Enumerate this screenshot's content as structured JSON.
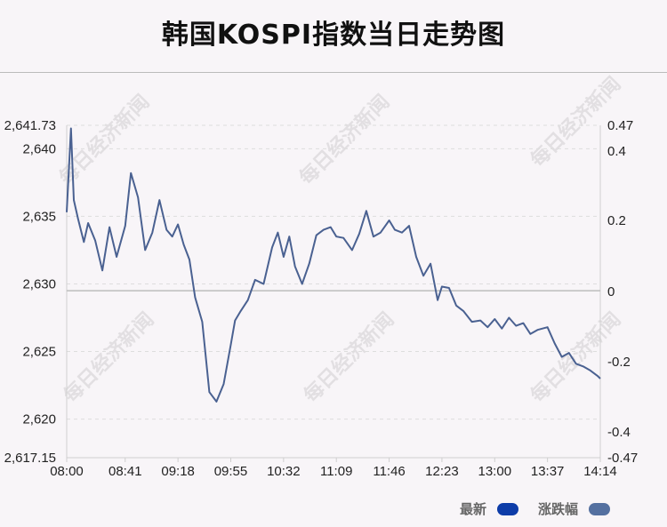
{
  "title": "韩国KOSPI指数当日走势图",
  "watermark": "每日经济新闻",
  "legend": [
    {
      "label": "最新",
      "color": "#0d3ca8"
    },
    {
      "label": "涨跌幅",
      "color": "#5470a0"
    }
  ],
  "chart_data": {
    "type": "line",
    "y_left_ticks": [
      "2,641.73",
      "2,640",
      "2,635",
      "2,630",
      "2,625",
      "2,620",
      "2,617.15"
    ],
    "y_left_range": [
      2617.15,
      2641.73
    ],
    "y_right_ticks": [
      "0.47",
      "0.4",
      "0.2",
      "0",
      "-0.2",
      "-0.4",
      "-0.47"
    ],
    "x_ticks": [
      "08:00",
      "08:41",
      "09:18",
      "09:55",
      "10:32",
      "11:09",
      "11:46",
      "12:23",
      "13:00",
      "13:37",
      "14:14"
    ],
    "baseline": 2629.5,
    "line_color": "#4a6191",
    "series": [
      {
        "name": "最新",
        "x": [
          "08:00",
          "08:03",
          "08:05",
          "08:08",
          "08:12",
          "08:15",
          "08:20",
          "08:25",
          "08:30",
          "08:35",
          "08:41",
          "08:45",
          "08:50",
          "08:55",
          "09:00",
          "09:05",
          "09:10",
          "09:14",
          "09:18",
          "09:22",
          "09:26",
          "09:30",
          "09:35",
          "09:40",
          "09:45",
          "09:50",
          "09:55",
          "09:58",
          "10:02",
          "10:07",
          "10:12",
          "10:18",
          "10:24",
          "10:28",
          "10:32",
          "10:36",
          "10:40",
          "10:45",
          "10:50",
          "10:55",
          "11:00",
          "11:05",
          "11:09",
          "11:14",
          "11:20",
          "11:25",
          "11:30",
          "11:35",
          "11:40",
          "11:46",
          "11:50",
          "11:55",
          "12:00",
          "12:05",
          "12:10",
          "12:15",
          "12:20",
          "12:23",
          "12:28",
          "12:33",
          "12:38",
          "12:44",
          "12:50",
          "12:55",
          "13:00",
          "13:05",
          "13:10",
          "13:15",
          "13:20",
          "13:25",
          "13:30",
          "13:37",
          "13:42",
          "13:47",
          "13:52",
          "13:57",
          "14:02",
          "14:07",
          "14:12",
          "14:14"
        ],
        "y": [
          2635.3,
          2641.5,
          2636.2,
          2634.8,
          2633.1,
          2634.5,
          2633.2,
          2631.0,
          2634.2,
          2632.0,
          2634.3,
          2638.2,
          2636.4,
          2632.5,
          2633.8,
          2636.2,
          2634.0,
          2633.5,
          2634.4,
          2632.9,
          2631.8,
          2629.0,
          2627.2,
          2622.0,
          2621.3,
          2622.6,
          2625.5,
          2627.3,
          2628.0,
          2628.8,
          2630.3,
          2630.0,
          2632.7,
          2633.8,
          2632.0,
          2633.5,
          2631.3,
          2630.0,
          2631.5,
          2633.6,
          2634.0,
          2634.2,
          2633.5,
          2633.4,
          2632.5,
          2633.7,
          2635.4,
          2633.5,
          2633.8,
          2634.7,
          2634.0,
          2633.8,
          2634.3,
          2632.0,
          2630.6,
          2631.5,
          2628.8,
          2629.8,
          2629.7,
          2628.4,
          2628.0,
          2627.2,
          2627.3,
          2626.8,
          2627.4,
          2626.7,
          2627.5,
          2626.9,
          2627.1,
          2626.3,
          2626.6,
          2626.8,
          2625.6,
          2624.6,
          2624.9,
          2624.1,
          2623.9,
          2623.6,
          2623.2,
          2623.0
        ]
      }
    ]
  }
}
